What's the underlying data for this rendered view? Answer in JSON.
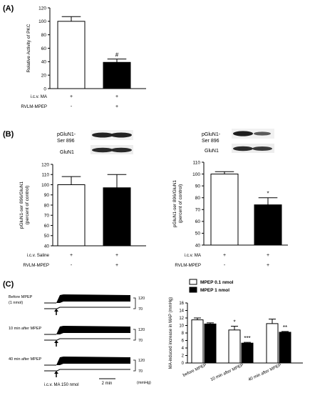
{
  "panel_labels": [
    "(A)",
    "(B)",
    "(C)"
  ],
  "chart_data": [
    {
      "id": "A",
      "type": "bar",
      "ylabel": "Relative Activity of PKC",
      "ylim": [
        0,
        120
      ],
      "yticks": [
        0,
        20,
        40,
        60,
        80,
        100,
        120
      ],
      "values": [
        100,
        39
      ],
      "errors": [
        7,
        5
      ],
      "fills": [
        "#ffffff",
        "#000000"
      ],
      "annotations": [
        "",
        "#"
      ],
      "conditions": [
        {
          "label": "i.c.v. MA",
          "marks": [
            "+",
            "+"
          ]
        },
        {
          "label": "RVLM-MPEP",
          "marks": [
            "-",
            "+"
          ]
        }
      ]
    },
    {
      "id": "B-left",
      "type": "bar",
      "ylabel_lines": [
        "pGluN1-ser 896/GluN1",
        "(percent of control)"
      ],
      "ylim": [
        40,
        120
      ],
      "yticks": [
        40,
        50,
        60,
        70,
        80,
        90,
        100,
        110,
        120
      ],
      "values": [
        100,
        97
      ],
      "errors": [
        8,
        13
      ],
      "fills": [
        "#ffffff",
        "#000000"
      ],
      "annotations": [
        "",
        ""
      ],
      "blot_labels": [
        "pGluN1-\nSer 896",
        "GluN1"
      ],
      "conditions": [
        {
          "label": "i.c.v. Saline",
          "marks": [
            "+",
            "+"
          ]
        },
        {
          "label": "RVLM-MPEP",
          "marks": [
            "-",
            "+"
          ]
        }
      ]
    },
    {
      "id": "B-right",
      "type": "bar",
      "ylabel_lines": [
        "pGluN1-ser 896/GluN1",
        "(percent of control)"
      ],
      "ylim": [
        40,
        110
      ],
      "yticks": [
        40,
        50,
        60,
        70,
        80,
        90,
        100,
        110
      ],
      "values": [
        100,
        74
      ],
      "errors": [
        2,
        6
      ],
      "fills": [
        "#ffffff",
        "#000000"
      ],
      "annotations": [
        "",
        "*"
      ],
      "blot_labels": [
        "pGluN1-\nSer 896",
        "GluN1"
      ],
      "conditions": [
        {
          "label": "i.c.v. MA",
          "marks": [
            "+",
            "+"
          ]
        },
        {
          "label": "RVLM-MPEP",
          "marks": [
            "-",
            "+"
          ]
        }
      ]
    },
    {
      "id": "C-right",
      "type": "bar",
      "ylabel": "MA-induced increase in MAP (mmHg)",
      "ylim": [
        0,
        16
      ],
      "yticks": [
        0,
        2,
        4,
        6,
        8,
        10,
        12,
        14,
        16
      ],
      "categories": [
        "before MPEP",
        "10 min after MPEP",
        "40 min after MPEP"
      ],
      "legend_position": "top",
      "series": [
        {
          "name": "MPEP 0.1 nmol",
          "values": [
            11.5,
            8.8,
            10.5
          ],
          "errors": [
            0.5,
            1.0,
            1.2
          ],
          "annotations": [
            "",
            "*",
            ""
          ],
          "fill": "#ffffff"
        },
        {
          "name": "MPEP 1 nmol",
          "values": [
            10.4,
            5.3,
            8.2
          ],
          "errors": [
            0.3,
            0.2,
            0.2
          ],
          "annotations": [
            "",
            "***",
            "**"
          ],
          "fill": "#000000"
        }
      ]
    }
  ],
  "traces": {
    "rows": [
      {
        "label_lines": [
          "Before MPEP",
          "(1 nmol)"
        ]
      },
      {
        "label_lines": [
          "10 min after MPEP"
        ]
      },
      {
        "label_lines": [
          "40 min after MPEP"
        ]
      }
    ],
    "scale_top": "120",
    "scale_bottom": "70",
    "injection_label": "i.c.v. MA 150 nmol",
    "time_scale_label": "2 min",
    "unit_label": "(mmHg)"
  }
}
